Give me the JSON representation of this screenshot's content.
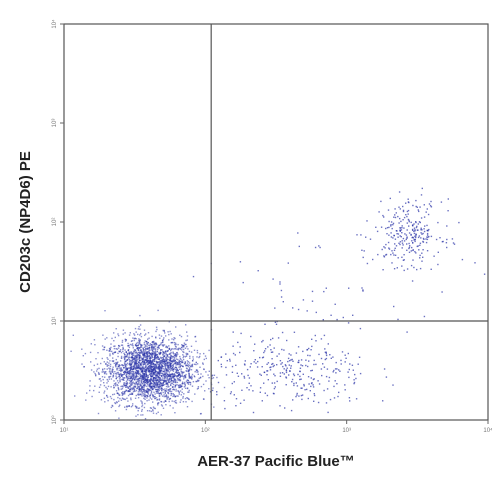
{
  "chart_data": {
    "type": "scatter",
    "xlabel": "AER-37 Pacific Blue™",
    "ylabel": "CD203c (NP4D6) PE",
    "x_scale": "log",
    "y_scale": "log",
    "xlim": [
      10,
      10000
    ],
    "ylim": [
      1,
      10000
    ],
    "x_ticks": [
      {
        "value": 10,
        "label": "10¹"
      },
      {
        "value": 100,
        "label": "10²"
      },
      {
        "value": 1000,
        "label": "10³"
      },
      {
        "value": 10000,
        "label": "10⁴"
      }
    ],
    "y_ticks": [
      {
        "value": 1,
        "label": "10⁰"
      },
      {
        "value": 10,
        "label": "10¹"
      },
      {
        "value": 100,
        "label": "10²"
      },
      {
        "value": 1000,
        "label": "10³"
      },
      {
        "value": 10000,
        "label": "10⁴"
      }
    ],
    "quadrant_gates": {
      "x": 110,
      "y": 10
    },
    "point_color": "#2b35a8",
    "populations": [
      {
        "name_hidden": true,
        "center": [
          40,
          3.2
        ],
        "spread_log": [
          0.16,
          0.17
        ],
        "count": 2600,
        "density": "high"
      },
      {
        "center": [
          400,
          3
        ],
        "spread_log": [
          0.28,
          0.2
        ],
        "count": 320,
        "density": "low"
      },
      {
        "center": [
          2700,
          80
        ],
        "spread_log": [
          0.12,
          0.16
        ],
        "count": 260,
        "density": "medium"
      },
      {
        "center": [
          900,
          20
        ],
        "spread_log": [
          0.45,
          0.35
        ],
        "count": 60,
        "density": "sparse"
      }
    ],
    "grid": false,
    "legend": "none"
  }
}
